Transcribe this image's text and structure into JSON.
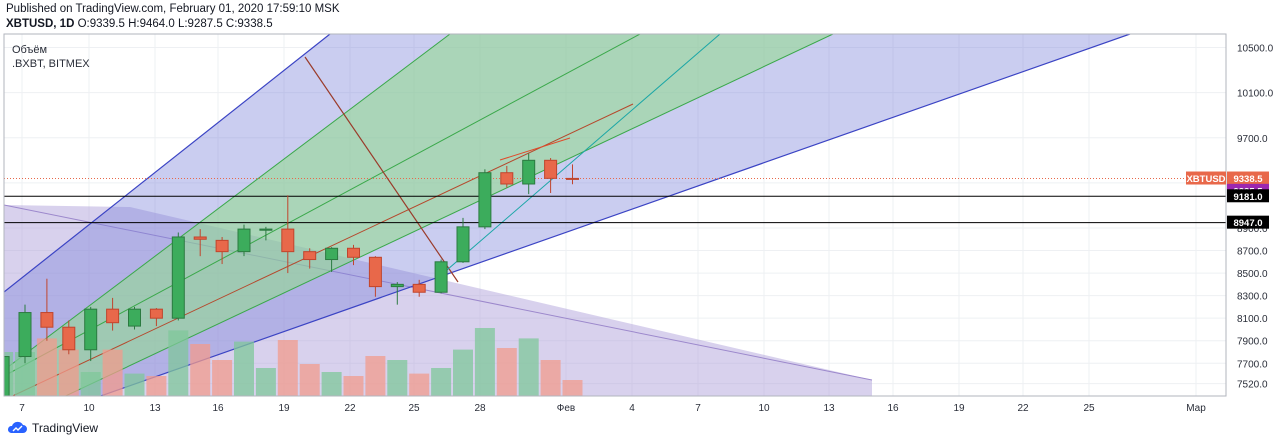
{
  "header": {
    "published": "Published on TradingView.com, February 01, 2020 17:59:10 MSK",
    "symbol": "XBTUSD, 1D",
    "ohlc": "O:9339.5 H:9464.0 L:9287.5 C:9338.5"
  },
  "legend": {
    "line1": "Объём",
    "line2": ".BXBT, BITMEX"
  },
  "footer": {
    "brand": "TradingView"
  },
  "colors": {
    "up": "#3cac5c",
    "down": "#e8684a",
    "vol_up": "#7fc79a",
    "vol_down": "#f19b8c",
    "channel_blue": "#7b83d9",
    "channel_green": "#8fdc8a",
    "channel_purple": "#a99ad6"
  },
  "chart_data": {
    "type": "candlestick",
    "x_tick_labels": [
      "7",
      "10",
      "13",
      "16",
      "19",
      "22",
      "25",
      "28",
      "Фев",
      "4",
      "7",
      "10",
      "13",
      "16",
      "19",
      "22",
      "25",
      "Мар"
    ],
    "y_tick_labels": [
      "10500.0",
      "10100.0",
      "9700.0",
      "9300.0",
      "8900.0",
      "8700.0",
      "8500.0",
      "8300.0",
      "8100.0",
      "7900.0",
      "7700.0",
      "7520.0"
    ],
    "y_ticks": [
      10500,
      10100,
      9700,
      9300,
      8900,
      8700,
      8500,
      8300,
      8100,
      7900,
      7700,
      7520
    ],
    "ylim": [
      7410,
      10620
    ],
    "price_labels": [
      {
        "text": "XBTUSD",
        "value": 9338.5,
        "color": "#e8684a",
        "kind": "symbol"
      },
      {
        "text": "9338.5",
        "value": 9338.5,
        "color": "#e8684a",
        "kind": "price"
      },
      {
        "text": "9335.5",
        "value": 9335.5,
        "color": "#9c27b0",
        "kind": "price"
      },
      {
        "text": "9181.0",
        "value": 9181.0,
        "color": "#000000",
        "kind": "price"
      },
      {
        "text": "8947.0",
        "value": 8947.0,
        "color": "#000000",
        "kind": "price"
      }
    ],
    "horizontal_lines": [
      9181.0,
      8947.0
    ],
    "last_price": 9338.5,
    "candles": [
      {
        "date": "2020-01-06",
        "o": 7345,
        "h": 7820,
        "l": 7250,
        "c": 7760
      },
      {
        "date": "2020-01-07",
        "o": 7760,
        "h": 8220,
        "l": 7700,
        "c": 8150
      },
      {
        "date": "2020-01-08",
        "o": 8150,
        "h": 8450,
        "l": 7900,
        "c": 8020
      },
      {
        "date": "2020-01-09",
        "o": 8020,
        "h": 8080,
        "l": 7780,
        "c": 7820
      },
      {
        "date": "2020-01-10",
        "o": 7820,
        "h": 8200,
        "l": 7720,
        "c": 8180
      },
      {
        "date": "2020-01-11",
        "o": 8180,
        "h": 8280,
        "l": 7990,
        "c": 8060
      },
      {
        "date": "2020-01-12",
        "o": 8030,
        "h": 8200,
        "l": 8000,
        "c": 8180
      },
      {
        "date": "2020-01-13",
        "o": 8180,
        "h": 8190,
        "l": 8030,
        "c": 8100
      },
      {
        "date": "2020-01-14",
        "o": 8100,
        "h": 8860,
        "l": 8080,
        "c": 8820
      },
      {
        "date": "2020-01-15",
        "o": 8820,
        "h": 8890,
        "l": 8650,
        "c": 8800
      },
      {
        "date": "2020-01-16",
        "o": 8790,
        "h": 8820,
        "l": 8580,
        "c": 8690
      },
      {
        "date": "2020-01-17",
        "o": 8690,
        "h": 8930,
        "l": 8650,
        "c": 8890
      },
      {
        "date": "2020-01-18",
        "o": 8880,
        "h": 8910,
        "l": 8790,
        "c": 8890
      },
      {
        "date": "2020-01-19",
        "o": 8890,
        "h": 9190,
        "l": 8500,
        "c": 8690
      },
      {
        "date": "2020-01-20",
        "o": 8690,
        "h": 8720,
        "l": 8540,
        "c": 8620
      },
      {
        "date": "2020-01-21",
        "o": 8620,
        "h": 8730,
        "l": 8510,
        "c": 8720
      },
      {
        "date": "2020-01-22",
        "o": 8720,
        "h": 8750,
        "l": 8570,
        "c": 8640
      },
      {
        "date": "2020-01-23",
        "o": 8640,
        "h": 8650,
        "l": 8290,
        "c": 8380
      },
      {
        "date": "2020-01-24",
        "o": 8380,
        "h": 8420,
        "l": 8220,
        "c": 8400
      },
      {
        "date": "2020-01-25",
        "o": 8400,
        "h": 8440,
        "l": 8290,
        "c": 8330
      },
      {
        "date": "2020-01-26",
        "o": 8330,
        "h": 8620,
        "l": 8320,
        "c": 8600
      },
      {
        "date": "2020-01-27",
        "o": 8600,
        "h": 8990,
        "l": 8590,
        "c": 8910
      },
      {
        "date": "2020-01-28",
        "o": 8910,
        "h": 9420,
        "l": 8890,
        "c": 9390
      },
      {
        "date": "2020-01-29",
        "o": 9390,
        "h": 9450,
        "l": 9260,
        "c": 9290
      },
      {
        "date": "2020-01-30",
        "o": 9290,
        "h": 9560,
        "l": 9200,
        "c": 9500
      },
      {
        "date": "2020-01-31",
        "o": 9500,
        "h": 9520,
        "l": 9210,
        "c": 9340
      },
      {
        "date": "2020-02-01",
        "o": 9339.5,
        "h": 9464.0,
        "l": 9287.5,
        "c": 9338.5
      }
    ],
    "volume_relative": [
      0.55,
      0.55,
      0.72,
      0.58,
      0.3,
      0.58,
      0.28,
      0.25,
      0.82,
      0.65,
      0.45,
      0.68,
      0.35,
      0.7,
      0.4,
      0.3,
      0.25,
      0.5,
      0.45,
      0.28,
      0.35,
      0.58,
      0.85,
      0.6,
      0.72,
      0.45,
      0.2
    ]
  }
}
